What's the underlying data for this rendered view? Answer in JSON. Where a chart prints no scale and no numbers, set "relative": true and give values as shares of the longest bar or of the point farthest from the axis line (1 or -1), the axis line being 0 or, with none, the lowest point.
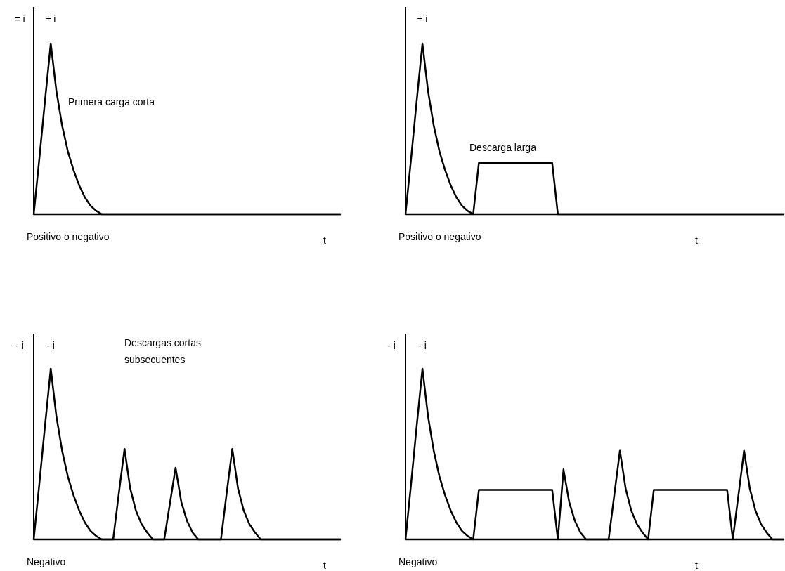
{
  "chart_data": [
    {
      "type": "line",
      "relative": true,
      "ylabel": "= i",
      "xlabel": "t",
      "title": "Positivo o negativo",
      "annotations": [
        "± i",
        "Primera carga corta"
      ],
      "color": "#000000",
      "categories": [
        null,
        null,
        null,
        null,
        null,
        null,
        null,
        null,
        null,
        null,
        null,
        null,
        null,
        null,
        null,
        null,
        null,
        null,
        null,
        null,
        null,
        null,
        null,
        null,
        null,
        null,
        null,
        null,
        null,
        null,
        null,
        null,
        null,
        null,
        null,
        null,
        null,
        null,
        null,
        null,
        null,
        null,
        null,
        null,
        null,
        null,
        null,
        null,
        null,
        null,
        null,
        null,
        null,
        null,
        null
      ],
      "values": [
        0,
        0.33,
        0.67,
        1,
        0.72,
        0.52,
        0.37,
        0.26,
        0.17,
        0.1,
        0.05,
        0.02,
        0,
        0,
        0,
        0,
        0,
        0,
        0,
        0,
        0,
        0,
        0,
        0,
        0,
        0,
        0,
        0,
        0,
        0,
        0,
        0,
        0,
        0,
        0,
        0,
        0,
        0,
        0,
        0,
        0,
        0,
        0,
        0,
        0,
        0,
        0,
        0,
        0,
        0,
        0,
        0,
        0,
        0,
        0
      ]
    },
    {
      "type": "line",
      "relative": true,
      "xlabel": "t",
      "title": "Positivo o negativo",
      "annotations": [
        "± i",
        "Descarga larga"
      ],
      "color": "#000000",
      "categories": [
        null,
        null,
        null,
        null,
        null,
        null,
        null,
        null,
        null,
        null,
        null,
        null,
        null,
        null,
        null,
        null,
        null,
        null,
        null,
        null,
        null,
        null,
        null,
        null,
        null,
        null,
        null,
        null,
        null,
        null,
        null,
        null,
        null,
        null,
        null,
        null,
        null,
        null,
        null,
        null,
        null,
        null,
        null,
        null,
        null,
        null,
        null,
        null,
        null,
        null,
        null,
        null,
        null,
        null,
        null,
        null,
        null,
        null,
        null,
        null,
        null,
        null,
        null,
        null,
        null,
        null,
        null,
        null
      ],
      "values": [
        0,
        0.33,
        0.67,
        1,
        0.72,
        0.52,
        0.37,
        0.26,
        0.17,
        0.1,
        0.05,
        0.02,
        0,
        0.3,
        0.3,
        0.3,
        0.3,
        0.3,
        0.3,
        0.3,
        0.3,
        0.3,
        0.3,
        0.3,
        0.3,
        0.3,
        0.3,
        0,
        0,
        0,
        0,
        0,
        0,
        0,
        0,
        0,
        0,
        0,
        0,
        0,
        0,
        0,
        0,
        0,
        0,
        0,
        0,
        0,
        0,
        0,
        0,
        0,
        0,
        0,
        0,
        0,
        0,
        0,
        0,
        0,
        0,
        0,
        0,
        0,
        0,
        0,
        0,
        0
      ]
    },
    {
      "type": "line",
      "relative": true,
      "ylabel": "- i",
      "xlabel": "t",
      "title": "Negativo",
      "annotations": [
        "- i",
        "Descargas cortas subsecuentes"
      ],
      "color": "#000000",
      "categories": [
        null,
        null,
        null,
        null,
        null,
        null,
        null,
        null,
        null,
        null,
        null,
        null,
        null,
        null,
        null,
        null,
        null,
        null,
        null,
        null,
        null,
        null,
        null,
        null,
        null,
        null,
        null,
        null,
        null,
        null,
        null,
        null,
        null,
        null,
        null,
        null,
        null,
        null,
        null,
        null,
        null,
        null,
        null,
        null,
        null,
        null,
        null,
        null,
        null,
        null,
        null,
        null,
        null,
        null,
        null
      ],
      "values": [
        0,
        0.33,
        0.67,
        1,
        0.72,
        0.52,
        0.37,
        0.26,
        0.17,
        0.1,
        0.05,
        0.02,
        0,
        0,
        0,
        0.27,
        0.53,
        0.3,
        0.17,
        0.09,
        0.04,
        0,
        0,
        0,
        0.21,
        0.42,
        0.22,
        0.11,
        0.04,
        0,
        0,
        0,
        0,
        0,
        0.27,
        0.53,
        0.3,
        0.17,
        0.09,
        0.04,
        0,
        0,
        0,
        0,
        0,
        0,
        0,
        0,
        0,
        0,
        0,
        0,
        0,
        0,
        0
      ]
    },
    {
      "type": "line",
      "relative": true,
      "ylabel": "- i",
      "xlabel": "t",
      "title": "Negativo",
      "annotations": [
        "- i"
      ],
      "color": "#000000",
      "categories": [
        null,
        null,
        null,
        null,
        null,
        null,
        null,
        null,
        null,
        null,
        null,
        null,
        null,
        null,
        null,
        null,
        null,
        null,
        null,
        null,
        null,
        null,
        null,
        null,
        null,
        null,
        null,
        null,
        null,
        null,
        null,
        null,
        null,
        null,
        null,
        null,
        null,
        null,
        null,
        null,
        null,
        null,
        null,
        null,
        null,
        null,
        null,
        null,
        null,
        null,
        null,
        null,
        null,
        null,
        null,
        null,
        null,
        null,
        null,
        null,
        null,
        null,
        null,
        null,
        null,
        null,
        null,
        null
      ],
      "values": [
        0,
        0.33,
        0.67,
        1,
        0.72,
        0.52,
        0.37,
        0.26,
        0.17,
        0.1,
        0.05,
        0.02,
        0,
        0.29,
        0.29,
        0.29,
        0.29,
        0.29,
        0.29,
        0.29,
        0.29,
        0.29,
        0.29,
        0.29,
        0.29,
        0.29,
        0.29,
        0,
        0.41,
        0.22,
        0.11,
        0.04,
        0,
        0,
        0,
        0,
        0,
        0.26,
        0.52,
        0.3,
        0.17,
        0.09,
        0.04,
        0,
        0.29,
        0.29,
        0.29,
        0.29,
        0.29,
        0.29,
        0.29,
        0.29,
        0.29,
        0.29,
        0.29,
        0.29,
        0.29,
        0.29,
        0,
        0.26,
        0.52,
        0.3,
        0.17,
        0.09,
        0.04,
        0,
        0,
        0
      ]
    }
  ]
}
